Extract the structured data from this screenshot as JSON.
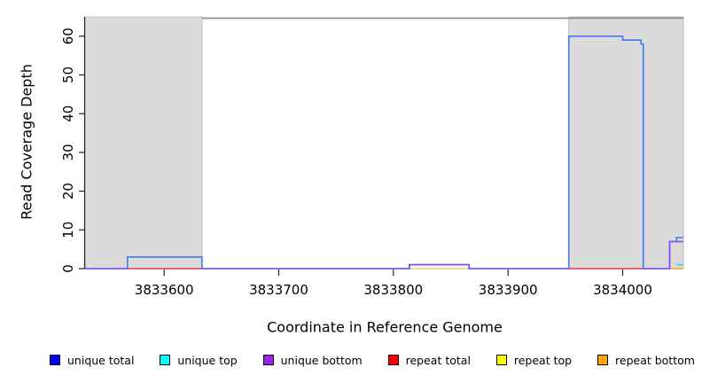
{
  "figure": {
    "ylabel": "Read Coverage Depth",
    "xlabel": "Coordinate in Reference Genome"
  },
  "legend": {
    "items": [
      {
        "label": "unique total",
        "color": "#0000ff"
      },
      {
        "label": "unique top",
        "color": "#00ffff"
      },
      {
        "label": "unique bottom",
        "color": "#a020f0"
      },
      {
        "label": "repeat total",
        "color": "#ff0000"
      },
      {
        "label": "repeat top",
        "color": "#ffff00"
      },
      {
        "label": "repeat bottom",
        "color": "#ffa500"
      }
    ]
  },
  "chart_data": {
    "type": "line",
    "title": "",
    "xlabel": "Coordinate in Reference Genome",
    "ylabel": "Read Coverage Depth",
    "xlim": [
      3833531,
      3834053
    ],
    "ylim": [
      0,
      65
    ],
    "x_ticks": [
      3833600,
      3833700,
      3833800,
      3833900,
      3834000
    ],
    "y_ticks": [
      0,
      10,
      20,
      30,
      40,
      50,
      60
    ],
    "grid": false,
    "legend_position": "bottom",
    "shaded_regions": {
      "color": "#dbdbdb",
      "border_color": "#bdbdbd",
      "ranges": [
        [
          3833531,
          3833633
        ],
        [
          3833953,
          3834053
        ]
      ]
    },
    "annotation_line": {
      "start": 3833633,
      "end": 3834053,
      "color": "#8e8e8e"
    },
    "series": [
      {
        "name": "repeat top",
        "color": "#d8d870",
        "segments": [
          [
            [
              3833814,
              0
            ],
            [
              3833866,
              0
            ]
          ]
        ]
      },
      {
        "name": "repeat bottom",
        "color": "#ffa520",
        "segments": [
          [
            [
              3834041,
              0
            ],
            [
              3834053,
              0
            ]
          ]
        ]
      },
      {
        "name": "repeat total",
        "color": "#ee3355",
        "segments": [
          [
            [
              3833568,
              0
            ],
            [
              3833633,
              0
            ]
          ],
          [
            [
              3833953,
              0
            ],
            [
              3834018,
              0
            ]
          ]
        ]
      },
      {
        "name": "unique top",
        "color": "#2fd8e0",
        "segments": [
          [
            [
              3834047,
              1
            ],
            [
              3834053,
              1
            ]
          ]
        ]
      },
      {
        "name": "unique total",
        "color": "#4477ee",
        "segments": [
          [
            [
              3833531,
              0
            ],
            [
              3833568,
              0
            ],
            [
              3833568,
              3
            ],
            [
              3833633,
              3
            ],
            [
              3833633,
              0
            ],
            [
              3833814,
              0
            ],
            [
              3833814,
              1
            ],
            [
              3833866,
              1
            ],
            [
              3833866,
              0
            ],
            [
              3833953,
              0
            ],
            [
              3833953,
              60
            ],
            [
              3834000,
              60
            ],
            [
              3834000,
              59
            ],
            [
              3834016,
              59
            ],
            [
              3834016,
              58
            ],
            [
              3834018,
              58
            ],
            [
              3834018,
              0
            ],
            [
              3834041,
              0
            ],
            [
              3834041,
              7
            ],
            [
              3834047,
              7
            ],
            [
              3834047,
              8
            ],
            [
              3834053,
              8
            ]
          ]
        ]
      },
      {
        "name": "unique bottom",
        "color": "#8552ee",
        "segments": [
          [
            [
              3833531,
              0
            ],
            [
              3833568,
              0
            ]
          ],
          [
            [
              3833633,
              0
            ],
            [
              3833814,
              0
            ],
            [
              3833814,
              1
            ],
            [
              3833866,
              1
            ],
            [
              3833866,
              0
            ],
            [
              3833953,
              0
            ]
          ],
          [
            [
              3834018,
              0
            ],
            [
              3834041,
              0
            ],
            [
              3834041,
              7
            ],
            [
              3834053,
              7
            ]
          ]
        ]
      }
    ]
  }
}
